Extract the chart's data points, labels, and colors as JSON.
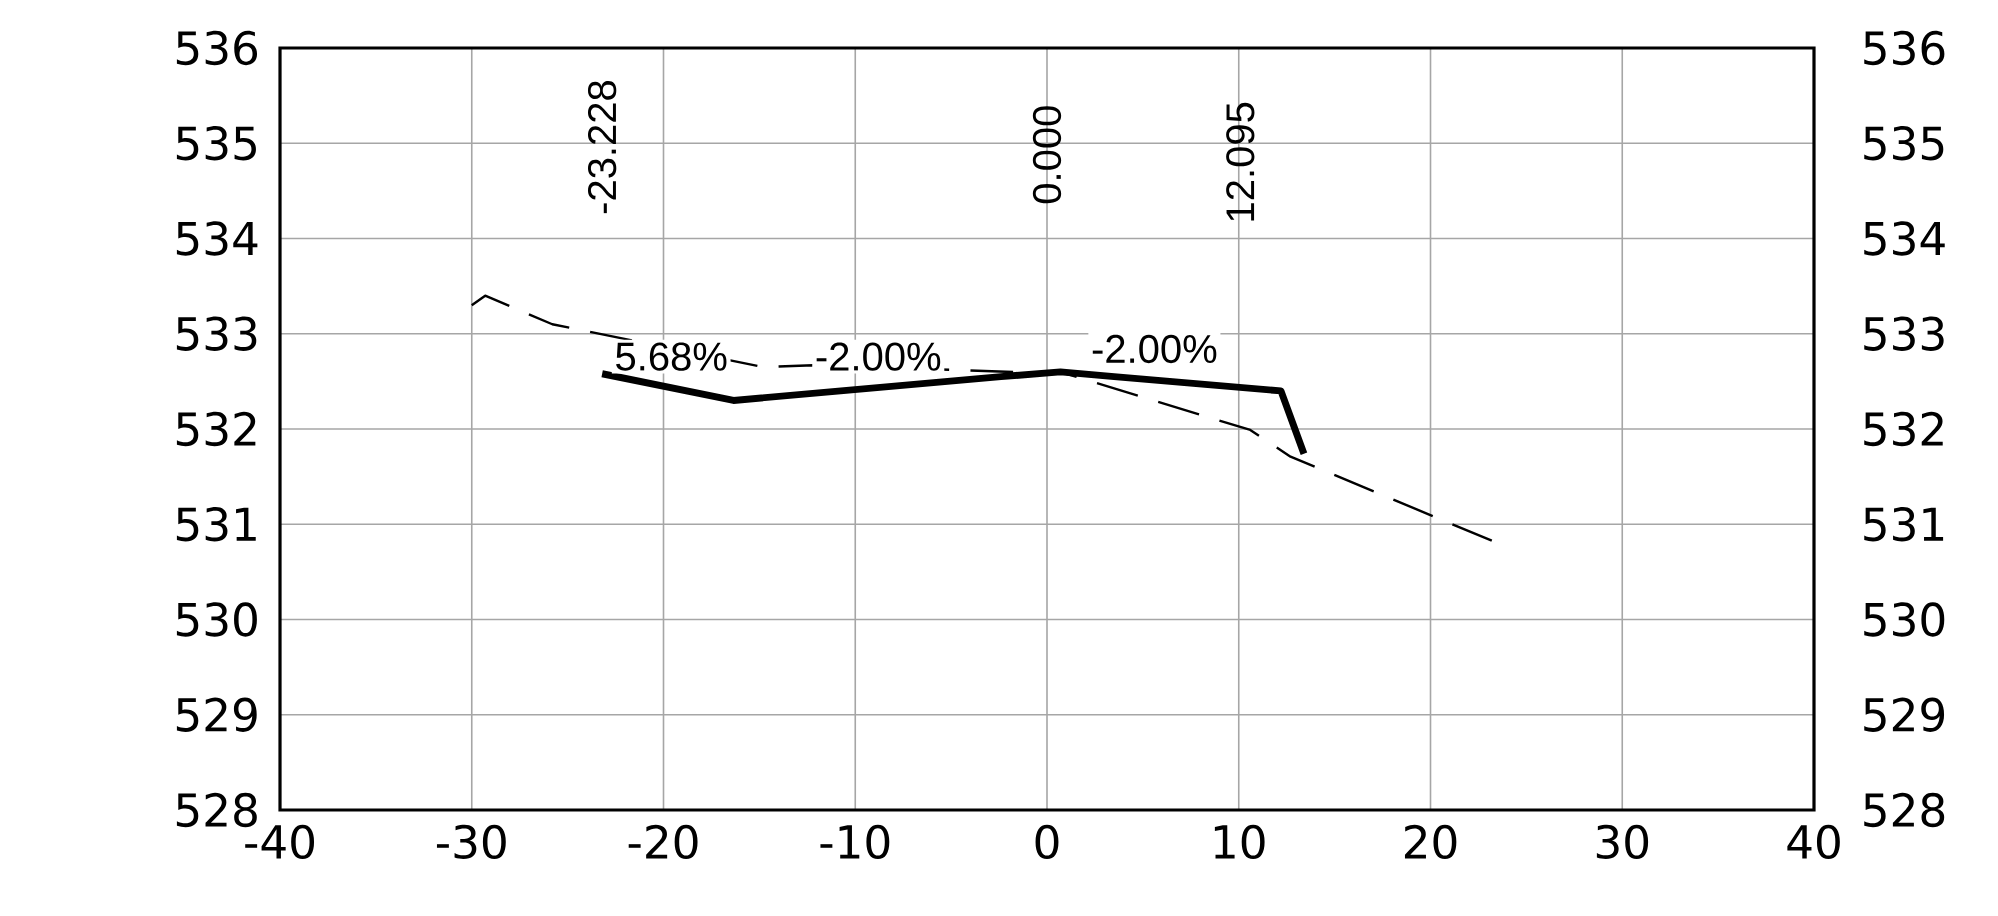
{
  "chart_data": {
    "type": "line",
    "series": [
      {
        "color": "#000000",
        "line_style": "dashed",
        "x": [
          -30,
          -29.3,
          -25.8,
          -14.8,
          -12.2,
          1,
          10.6,
          12.7,
          23.4
        ],
        "values": [
          533.3,
          533.4,
          533.1,
          532.65,
          532.67,
          532.58,
          531.99,
          531.71,
          530.81
        ]
      },
      {
        "color": "#000000",
        "line_style": "solid",
        "x": [
          -23.2,
          -16.35,
          -2.4,
          0.7,
          3.5,
          12.2,
          13.4
        ],
        "values": [
          532.58,
          532.3,
          532.55,
          532.6,
          532.55,
          532.4,
          531.74
        ]
      }
    ],
    "xlim": [
      -40,
      40
    ],
    "xticks": [
      -40,
      -30,
      -20,
      -10,
      0,
      10,
      20,
      30,
      40
    ],
    "ylim": [
      528,
      536
    ],
    "yticks": [
      528,
      529,
      530,
      531,
      532,
      533,
      534,
      535,
      536
    ],
    "y2lim": [
      528,
      536
    ],
    "y2ticks": [
      528,
      529,
      530,
      531,
      532,
      533,
      534,
      535,
      536
    ],
    "grid": true,
    "marker": "none",
    "annotations": [
      "-23.228",
      "0.000",
      "12.095",
      "5.68%",
      "-2.00%",
      "-2.00%"
    ]
  }
}
